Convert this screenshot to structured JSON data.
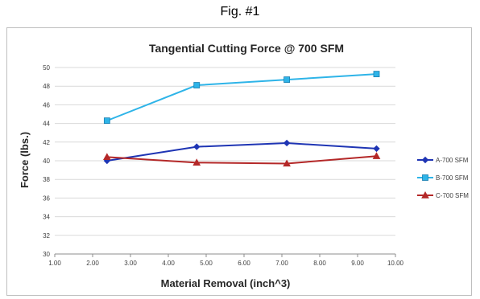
{
  "caption": "Fig. #1",
  "chart_data": {
    "type": "line",
    "title": "Tangential Cutting Force @ 700 SFM",
    "xlabel": "Material Removal (inch^3)",
    "ylabel": "Force (lbs.)",
    "xlim": [
      1.0,
      10.0
    ],
    "ylim": [
      30,
      50
    ],
    "xticks": [
      "1.00",
      "2.00",
      "3.00",
      "4.00",
      "5.00",
      "6.00",
      "7.00",
      "8.00",
      "9.00",
      "10.00"
    ],
    "yticks": [
      "30",
      "32",
      "34",
      "36",
      "38",
      "40",
      "42",
      "44",
      "46",
      "48",
      "50"
    ],
    "grid": "horizontal",
    "legend_position": "right",
    "series": [
      {
        "name": "A-700 SFM",
        "color": "#1f35b4",
        "marker": "diamond",
        "x": [
          2.38,
          4.75,
          7.13,
          9.5
        ],
        "y": [
          40.0,
          41.5,
          41.9,
          41.3
        ]
      },
      {
        "name": "B-700 SFM",
        "color": "#2eb4e8",
        "marker": "square",
        "x": [
          2.38,
          4.75,
          7.13,
          9.5
        ],
        "y": [
          44.3,
          48.1,
          48.7,
          49.3
        ]
      },
      {
        "name": "C-700 SFM",
        "color": "#b42828",
        "marker": "triangle",
        "x": [
          2.38,
          4.75,
          7.13,
          9.5
        ],
        "y": [
          40.4,
          39.8,
          39.7,
          40.5
        ]
      }
    ]
  }
}
